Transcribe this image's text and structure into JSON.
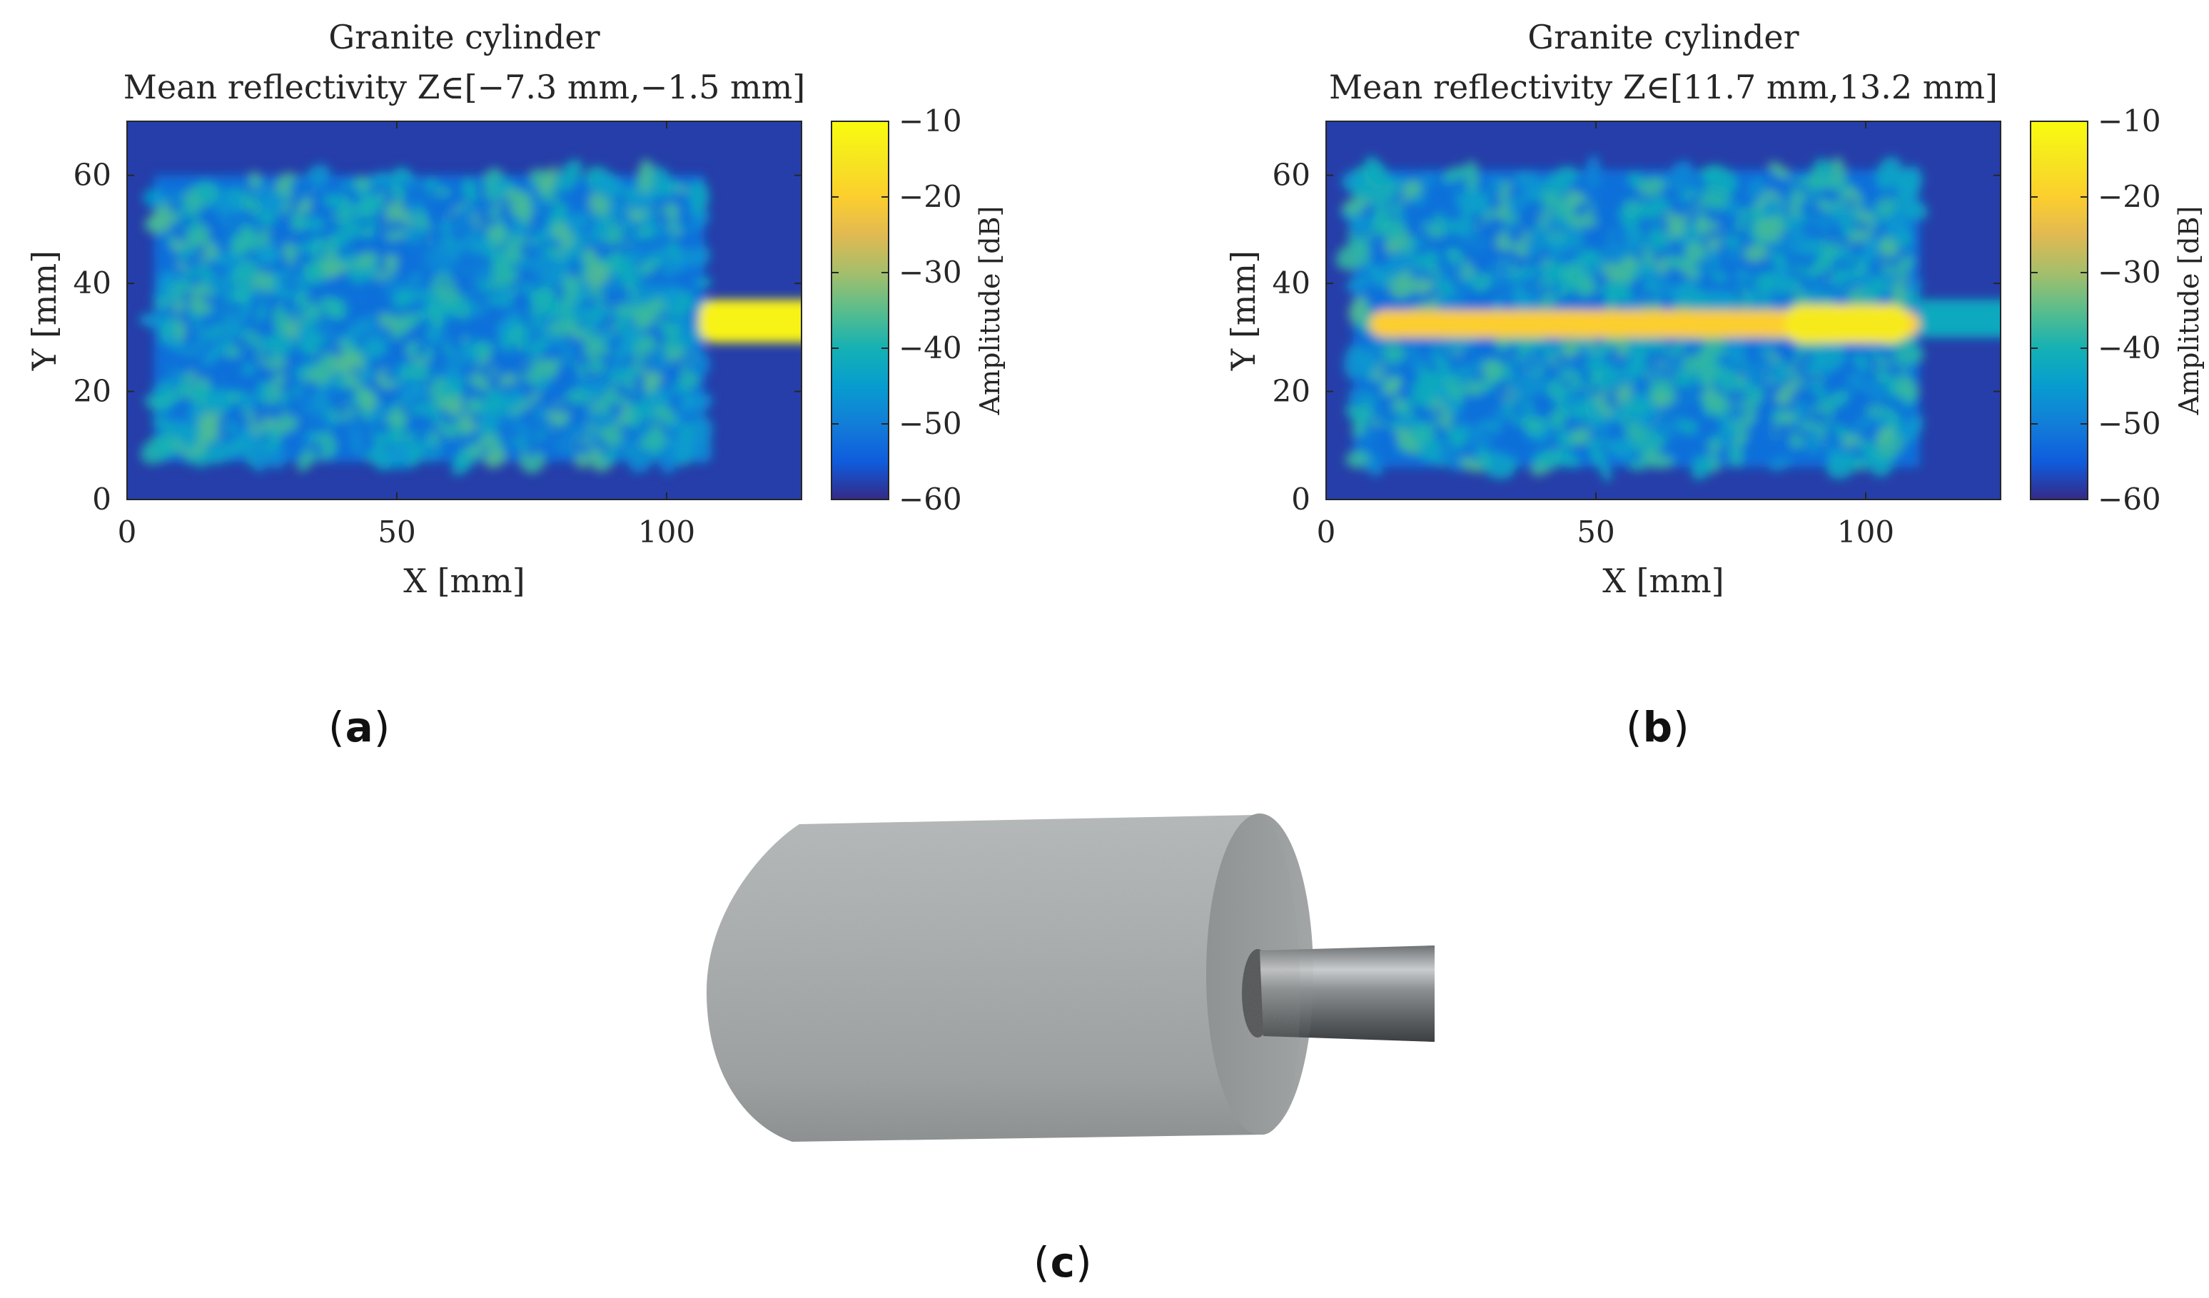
{
  "chart_data": [
    {
      "type": "heatmap",
      "panel_label": "(a)",
      "title_line1": "Granite cylinder",
      "title_line2": "Mean reflectivity Z∈[−7.3 mm,−1.5 mm]",
      "xlabel": "X [mm]",
      "ylabel": "Y [mm]",
      "xlim": [
        0,
        125
      ],
      "ylim": [
        0,
        70
      ],
      "xticks": [
        "0",
        "50",
        "100"
      ],
      "xtick_values": [
        0,
        50,
        100
      ],
      "yticks": [
        "0",
        "20",
        "40",
        "60"
      ],
      "ytick_values": [
        0,
        20,
        40,
        60
      ],
      "colorbar": {
        "label": "Amplitude [dB]",
        "range": [
          -60,
          -10
        ],
        "ticks": [
          "−10",
          "−20",
          "−30",
          "−40",
          "−50",
          "−60"
        ],
        "tick_values": [
          -10,
          -20,
          -30,
          -40,
          -50,
          -60
        ],
        "colormap": "parula"
      },
      "features": {
        "speckle_region": {
          "x": [
            5,
            107
          ],
          "y": [
            7,
            60
          ],
          "level_db": -45
        },
        "background_level_db": -58,
        "bar": {
          "x": [
            106,
            125
          ],
          "y": [
            29,
            37
          ],
          "level_db": -12
        }
      }
    },
    {
      "type": "heatmap",
      "panel_label": "(b)",
      "title_line1": "Granite cylinder",
      "title_line2": "Mean reflectivity Z∈[11.7 mm,13.2 mm]",
      "xlabel": "X [mm]",
      "ylabel": "Y [mm]",
      "xlim": [
        0,
        125
      ],
      "ylim": [
        0,
        70
      ],
      "xticks": [
        "0",
        "50",
        "100"
      ],
      "xtick_values": [
        0,
        50,
        100
      ],
      "yticks": [
        "0",
        "20",
        "40",
        "60"
      ],
      "ytick_values": [
        0,
        20,
        40,
        60
      ],
      "colorbar": {
        "label": "Amplitude [dB]",
        "range": [
          -60,
          -10
        ],
        "ticks": [
          "−10",
          "−20",
          "−30",
          "−40",
          "−50",
          "−60"
        ],
        "tick_values": [
          -10,
          -20,
          -30,
          -40,
          -50,
          -60
        ],
        "colormap": "parula"
      },
      "features": {
        "speckle_region": {
          "x": [
            5,
            110
          ],
          "y": [
            6,
            61
          ],
          "level_db": -45
        },
        "background_level_db": -58,
        "bar": {
          "x": [
            8,
            110
          ],
          "y": [
            30,
            35
          ],
          "level_db": -20
        },
        "bar_hotspot": {
          "x": [
            85,
            108
          ],
          "y": [
            29,
            36
          ],
          "level_db": -14
        },
        "rod_extension": {
          "x": [
            110,
            125
          ],
          "y": [
            30,
            37
          ],
          "level_db": -42
        }
      }
    }
  ],
  "labels": {
    "a": "(a)",
    "b": "(b)",
    "c": "(c)"
  },
  "photo": {
    "subject": "granite cylinder with steel rod",
    "colors": {
      "stone": "#a9adae",
      "stone_dark": "#8f9394",
      "rod": "#9a9ea0"
    }
  }
}
